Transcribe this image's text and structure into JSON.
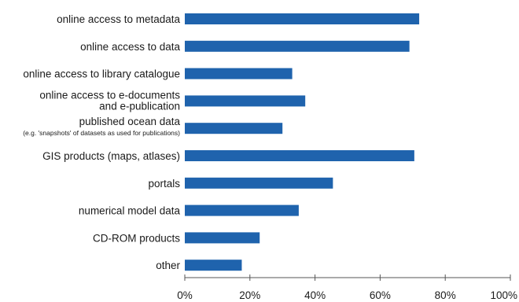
{
  "chart_data": {
    "type": "bar",
    "orientation": "horizontal",
    "title": "",
    "xlabel": "",
    "ylabel": "",
    "categories": [
      {
        "label": "online access to metadata"
      },
      {
        "label": "online access to data"
      },
      {
        "label": "online access to library catalogue"
      },
      {
        "label": "online access to e-documents",
        "label2": "and e-publication"
      },
      {
        "label": "published ocean data",
        "sublabel": "(e.g. 'snapshots' of datasets as used for publications)"
      },
      {
        "label": "GIS products (maps, atlases)"
      },
      {
        "label": "portals"
      },
      {
        "label": "numerical model data"
      },
      {
        "label": "CD-ROM products"
      },
      {
        "label": "other"
      }
    ],
    "values": [
      72,
      69,
      33,
      37,
      30,
      70.5,
      45.5,
      35,
      23,
      17.5
    ],
    "xlim": [
      0,
      100
    ],
    "xticks": [
      "0%",
      "20%",
      "40%",
      "60%",
      "80%",
      "100%"
    ],
    "xtick_values": [
      0,
      20,
      40,
      60,
      80,
      100
    ],
    "grid": false,
    "bar_color": "#1f63ad"
  }
}
